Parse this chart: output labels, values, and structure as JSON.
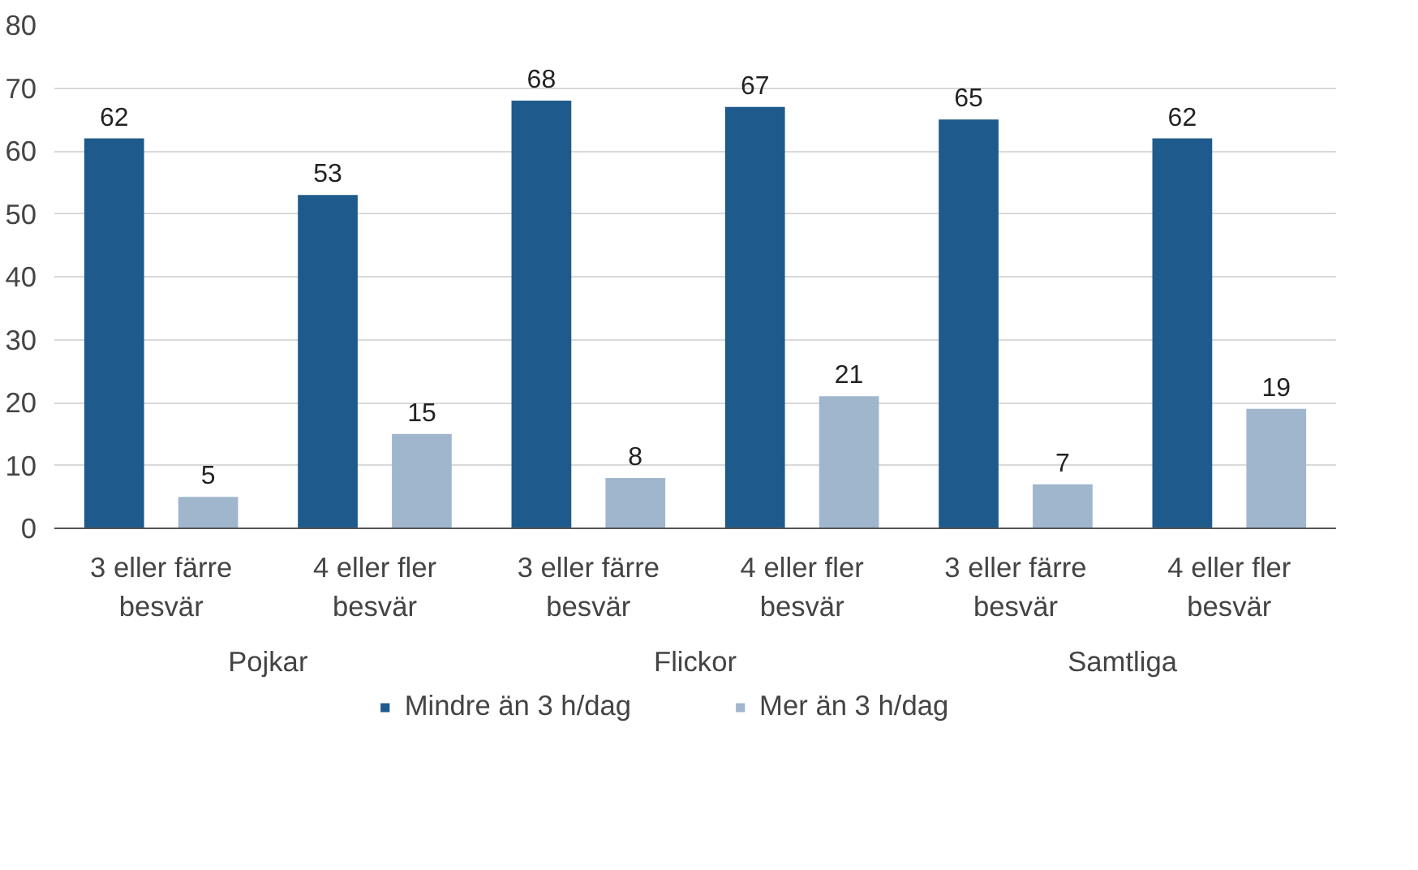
{
  "chart_data": {
    "type": "bar",
    "categories": [
      "3 eller färre besvär",
      "4 eller fler besvär",
      "3 eller färre besvär",
      "4 eller fler besvär",
      "3 eller färre besvär",
      "4 eller fler besvär"
    ],
    "series": [
      {
        "name": "Mindre än 3 h/dag",
        "color": "#1f5a8c",
        "values": [
          62,
          53,
          68,
          67,
          65,
          62
        ]
      },
      {
        "name": "Mer än 3 h/dag",
        "color": "#a0b6cd",
        "values": [
          5,
          15,
          8,
          21,
          7,
          19
        ]
      }
    ],
    "annotations": [
      "Pojkar",
      "Flickor",
      "Samtliga"
    ],
    "ylim": [
      0,
      80
    ],
    "yticks": [
      0,
      10,
      20,
      30,
      40,
      50,
      60,
      70,
      80
    ],
    "grid": "y",
    "legend": "bottom",
    "data_labels": true
  }
}
